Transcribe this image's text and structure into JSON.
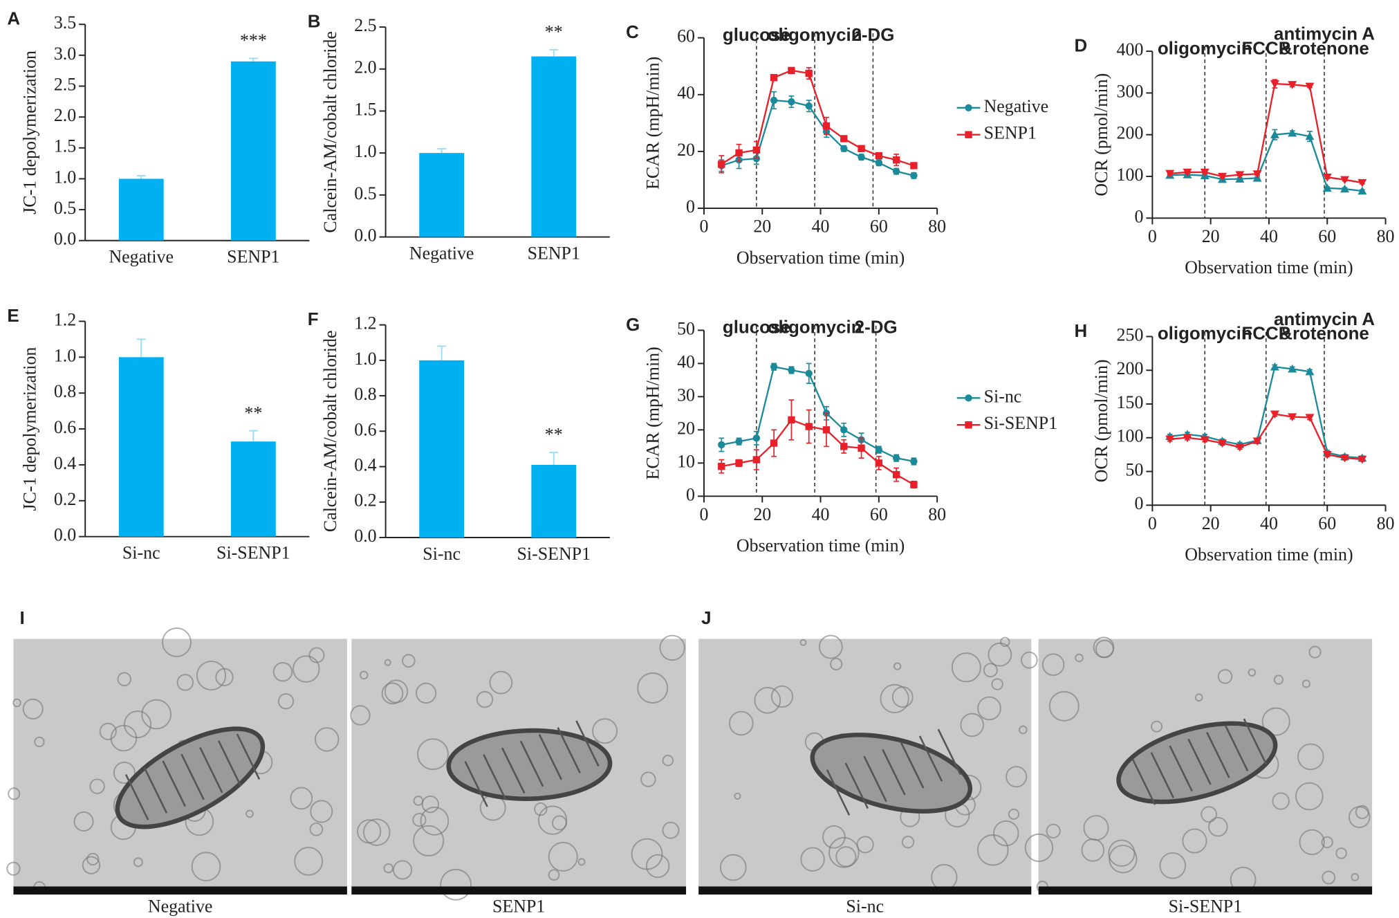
{
  "chart_data": [
    {
      "panel": "A",
      "type": "bar",
      "ylabel": "JC-1 depolymerization",
      "categories": [
        "Negative",
        "SENP1"
      ],
      "values": [
        1.0,
        2.9
      ],
      "errors": [
        0.05,
        0.05
      ],
      "significance": [
        null,
        "***"
      ],
      "color": "#00b0f0",
      "ylim": [
        0,
        3.5
      ],
      "yticks": [
        {
          "value": 0,
          "label": "0.0"
        },
        {
          "value": 0.5,
          "label": "0.5"
        },
        {
          "value": 1,
          "label": "1.0"
        },
        {
          "value": 1.5,
          "label": "1.5"
        },
        {
          "value": 2,
          "label": "2.0"
        },
        {
          "value": 2.5,
          "label": "2.5"
        },
        {
          "value": 3,
          "label": "3.0"
        },
        {
          "value": 3.5,
          "label": "3.5"
        }
      ]
    },
    {
      "panel": "B",
      "type": "bar",
      "ylabel": "Calcein-AM/cobalt chloride",
      "categories": [
        "Negative",
        "SENP1"
      ],
      "values": [
        1.0,
        2.15
      ],
      "errors": [
        0.05,
        0.08
      ],
      "significance": [
        null,
        "**"
      ],
      "color": "#00b0f0",
      "ylim": [
        0,
        2.5
      ],
      "yticks": [
        {
          "value": 0,
          "label": "0.0"
        },
        {
          "value": 0.5,
          "label": "0.5"
        },
        {
          "value": 1,
          "label": "1.0"
        },
        {
          "value": 1.5,
          "label": "1.5"
        },
        {
          "value": 2,
          "label": "2.0"
        },
        {
          "value": 2.5,
          "label": "2.5"
        }
      ]
    },
    {
      "panel": "C",
      "type": "line",
      "xlabel": "Observation time (min)",
      "ylabel": "ECAR (mpH/min)",
      "x": [
        6,
        12,
        18,
        24,
        30,
        36,
        42,
        48,
        54,
        60,
        66,
        72
      ],
      "series": [
        {
          "name": "Negative",
          "color": "#1a8a9a",
          "marker": "circle",
          "values": [
            15,
            17,
            17.5,
            38,
            37.5,
            36,
            27,
            21,
            18,
            16,
            13,
            11.5
          ],
          "errors": [
            2,
            3,
            2,
            3,
            2,
            2,
            2,
            1,
            1,
            1,
            1,
            1
          ]
        },
        {
          "name": "SENP1",
          "color": "#e8202a",
          "marker": "square",
          "values": [
            15.5,
            19.5,
            20.5,
            46,
            48.5,
            47.5,
            29,
            24.5,
            21,
            18.5,
            17,
            15
          ],
          "errors": [
            3,
            3,
            3,
            1,
            1,
            2,
            3,
            1,
            1,
            1,
            2,
            1
          ]
        }
      ],
      "markers": [
        {
          "x": 18,
          "label": [
            "glucose"
          ]
        },
        {
          "x": 38,
          "label": [
            "oligomycin"
          ]
        },
        {
          "x": 58,
          "label": [
            "2-DG"
          ]
        }
      ],
      "legend": "right",
      "xlim": [
        0,
        80
      ],
      "xticks": [
        0,
        20,
        40,
        60,
        80
      ],
      "ylim": [
        0,
        60
      ],
      "yticks": [
        0,
        20,
        40,
        60
      ]
    },
    {
      "panel": "D",
      "type": "line",
      "xlabel": "Observation time (min)",
      "ylabel": "OCR (pmol/min)",
      "x": [
        6,
        12,
        18,
        24,
        30,
        36,
        42,
        48,
        54,
        60,
        66,
        72
      ],
      "series": [
        {
          "color": "#1a8a9a",
          "marker": "triangle-up",
          "values": [
            103,
            104,
            102,
            93,
            94,
            96,
            200,
            204,
            196,
            72,
            70,
            65
          ],
          "errors": [
            3,
            3,
            3,
            3,
            3,
            3,
            12,
            5,
            12,
            3,
            3,
            3
          ]
        },
        {
          "color": "#e8202a",
          "marker": "triangle-down",
          "values": [
            107,
            110,
            110,
            100,
            104,
            106,
            322,
            320,
            316,
            98,
            92,
            85
          ],
          "errors": [
            3,
            3,
            3,
            3,
            3,
            3,
            10,
            5,
            3,
            3,
            3,
            3
          ]
        }
      ],
      "markers": [
        {
          "x": 18,
          "label": [
            "oligomycin"
          ]
        },
        {
          "x": 39,
          "label": [
            "FCCP"
          ]
        },
        {
          "x": 59,
          "label": [
            "antimycin A",
            "&rotenone"
          ]
        }
      ],
      "xlim": [
        0,
        80
      ],
      "xticks": [
        0,
        20,
        40,
        60,
        80
      ],
      "ylim": [
        0,
        400
      ],
      "yticks": [
        0,
        100,
        200,
        300,
        400
      ]
    },
    {
      "panel": "E",
      "type": "bar",
      "ylabel": "JC-1 depolymerization",
      "categories": [
        "Si-nc",
        "Si-SENP1"
      ],
      "values": [
        1.0,
        0.53
      ],
      "errors": [
        0.1,
        0.06
      ],
      "significance": [
        null,
        "**"
      ],
      "color": "#00b0f0",
      "ylim": [
        0,
        1.2
      ],
      "yticks": [
        {
          "value": 0,
          "label": "0.0"
        },
        {
          "value": 0.2,
          "label": "0.2"
        },
        {
          "value": 0.4,
          "label": "0.4"
        },
        {
          "value": 0.6,
          "label": "0.6"
        },
        {
          "value": 0.8,
          "label": "0.8"
        },
        {
          "value": 1,
          "label": "1.0"
        },
        {
          "value": 1.2,
          "label": "1.2"
        }
      ]
    },
    {
      "panel": "F",
      "type": "bar",
      "ylabel": "Calcein-AM/cobalt chloride",
      "categories": [
        "Si-nc",
        "Si-SENP1"
      ],
      "values": [
        1.0,
        0.41
      ],
      "errors": [
        0.08,
        0.07
      ],
      "significance": [
        null,
        "**"
      ],
      "color": "#00b0f0",
      "ylim": [
        0,
        1.2
      ],
      "yticks": [
        {
          "value": 0,
          "label": "0.0"
        },
        {
          "value": 0.2,
          "label": "0.2"
        },
        {
          "value": 0.4,
          "label": "0.4"
        },
        {
          "value": 0.6,
          "label": "0.6"
        },
        {
          "value": 0.8,
          "label": "0.8"
        },
        {
          "value": 1,
          "label": "1.0"
        },
        {
          "value": 1.2,
          "label": "1.2"
        }
      ]
    },
    {
      "panel": "G",
      "type": "line",
      "xlabel": "Observation time (min)",
      "ylabel": "ECAR (mpH/min)",
      "x": [
        6,
        12,
        18,
        24,
        30,
        36,
        42,
        48,
        54,
        60,
        66,
        72
      ],
      "series": [
        {
          "name": "Si-nc",
          "color": "#1a8a9a",
          "marker": "circle",
          "values": [
            15.5,
            16.5,
            17.5,
            39,
            38,
            37,
            25,
            20,
            17,
            14,
            11.5,
            10.5
          ],
          "errors": [
            2,
            1,
            2,
            1,
            1,
            3,
            2,
            2,
            2,
            1,
            1,
            1
          ]
        },
        {
          "name": "Si-SENP1",
          "color": "#e8202a",
          "marker": "square",
          "values": [
            9,
            10,
            11,
            16,
            23,
            21,
            20,
            15,
            14.5,
            10,
            6.5,
            3.5
          ],
          "errors": [
            2,
            1,
            3,
            4,
            6,
            5,
            5,
            2,
            3,
            2,
            2,
            1
          ]
        }
      ],
      "markers": [
        {
          "x": 18,
          "label": [
            "glucose"
          ]
        },
        {
          "x": 38,
          "label": [
            "oligomycin"
          ]
        },
        {
          "x": 59,
          "label": [
            "2-DG"
          ]
        }
      ],
      "legend": "right",
      "xlim": [
        0,
        80
      ],
      "xticks": [
        0,
        20,
        40,
        60,
        80
      ],
      "ylim": [
        0,
        50
      ],
      "yticks": [
        0,
        10,
        20,
        30,
        40,
        50
      ]
    },
    {
      "panel": "H",
      "type": "line",
      "xlabel": "Observation time (min)",
      "ylabel": "OCR (pmol/min)",
      "x": [
        6,
        12,
        18,
        24,
        30,
        36,
        42,
        48,
        54,
        60,
        66,
        72
      ],
      "series": [
        {
          "color": "#1a8a9a",
          "marker": "triangle-up",
          "values": [
            102,
            105,
            102,
            95,
            90,
            96,
            205,
            202,
            198,
            78,
            72,
            70
          ],
          "errors": [
            3,
            3,
            3,
            3,
            3,
            3,
            3,
            3,
            3,
            3,
            3,
            3
          ]
        },
        {
          "color": "#e8202a",
          "marker": "triangle-down",
          "values": [
            98,
            100,
            97,
            92,
            86,
            95,
            135,
            131,
            130,
            75,
            70,
            68
          ],
          "errors": [
            3,
            3,
            3,
            3,
            3,
            3,
            3,
            3,
            3,
            3,
            3,
            3
          ]
        }
      ],
      "markers": [
        {
          "x": 18,
          "label": [
            "oligomycin"
          ]
        },
        {
          "x": 39,
          "label": [
            "FCCP"
          ]
        },
        {
          "x": 59,
          "label": [
            "antimycin A",
            "&rotenone"
          ]
        }
      ],
      "xlim": [
        0,
        80
      ],
      "xticks": [
        0,
        20,
        40,
        60,
        80
      ],
      "ylim": [
        0,
        250
      ],
      "yticks": [
        0,
        50,
        100,
        150,
        200,
        250
      ]
    }
  ],
  "figure_images": [
    {
      "panel": "I",
      "captions": [
        "Negative",
        "SENP1"
      ]
    },
    {
      "panel": "J",
      "captions": [
        "Si-nc",
        "Si-SENP1"
      ]
    }
  ]
}
